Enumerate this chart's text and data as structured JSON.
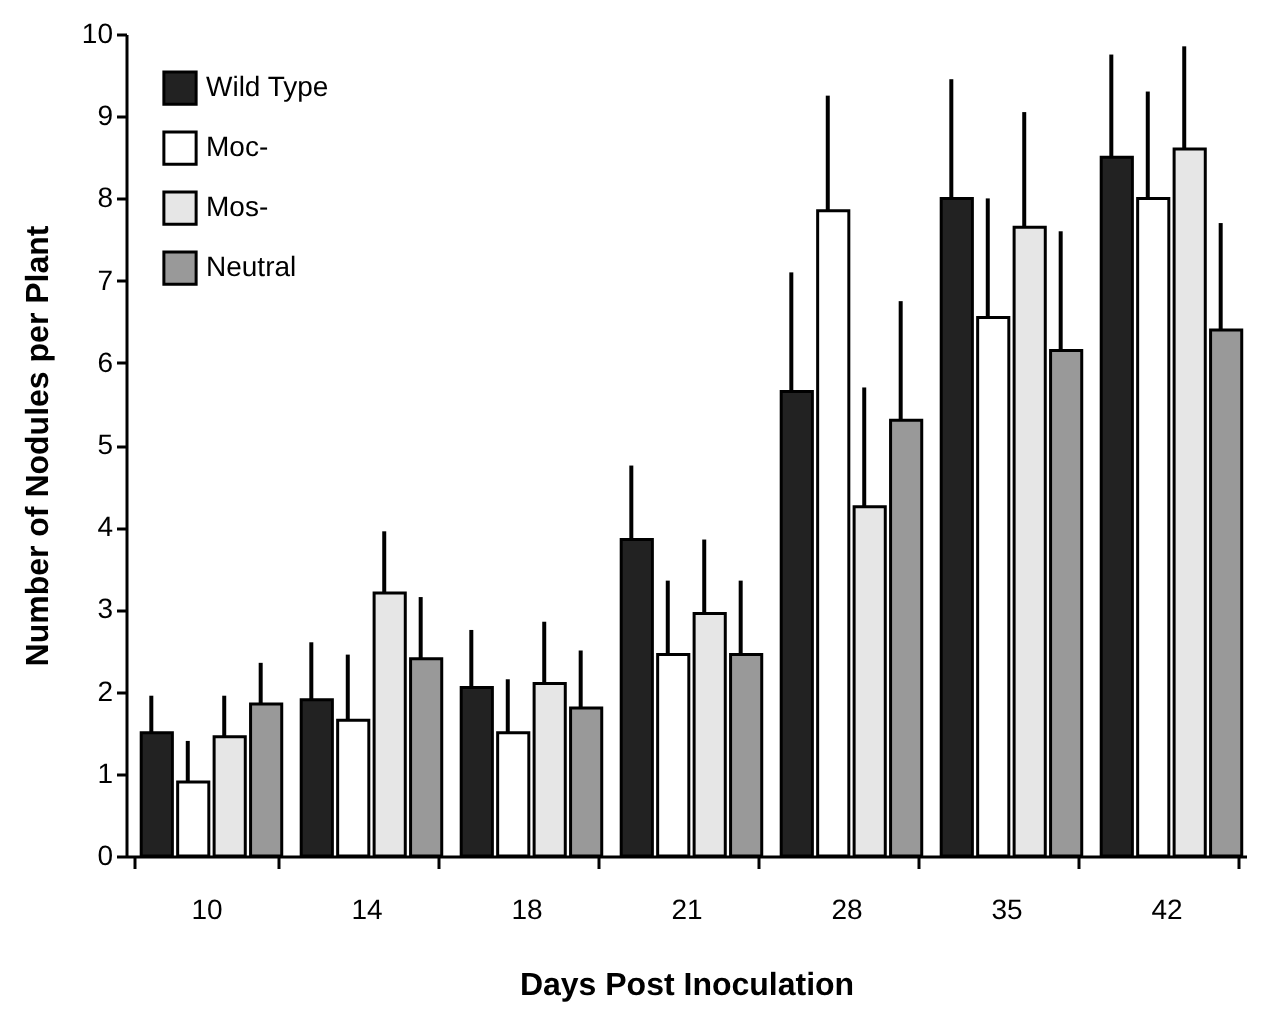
{
  "chart_data": {
    "type": "bar",
    "xlabel": "Days Post Inoculation",
    "ylabel": "Number of Nodules per Plant",
    "categories": [
      "10",
      "14",
      "18",
      "21",
      "28",
      "35",
      "42"
    ],
    "ylim": [
      0,
      10
    ],
    "yticks": [
      0,
      1,
      2,
      3,
      4,
      5,
      6,
      7,
      8,
      9,
      10
    ],
    "legend": "top left",
    "grid": false,
    "series": [
      {
        "name": "Wild Type",
        "color": "#222222",
        "values": [
          1.5,
          1.9,
          2.05,
          3.85,
          5.65,
          8.0,
          8.5
        ],
        "errors": [
          [
            1.5,
            1.95
          ],
          [
            1.9,
            2.6
          ],
          [
            2.05,
            2.75
          ],
          [
            3.85,
            4.75
          ],
          [
            5.65,
            7.1
          ],
          [
            8.0,
            9.45
          ],
          [
            8.5,
            9.75
          ]
        ]
      },
      {
        "name": "Moc-",
        "color": "#ffffff",
        "values": [
          0.9,
          1.65,
          1.5,
          2.45,
          7.85,
          6.55,
          8.0
        ],
        "errors": [
          [
            0.9,
            1.4
          ],
          [
            1.65,
            2.45
          ],
          [
            1.5,
            2.15
          ],
          [
            2.45,
            3.35
          ],
          [
            7.85,
            9.25
          ],
          [
            6.55,
            8.0
          ],
          [
            8.0,
            9.3
          ]
        ]
      },
      {
        "name": "Mos-",
        "color": "#e6e6e6",
        "values": [
          1.45,
          3.2,
          2.1,
          2.95,
          4.25,
          7.65,
          8.6
        ],
        "errors": [
          [
            1.45,
            1.95
          ],
          [
            3.2,
            3.95
          ],
          [
            2.1,
            2.85
          ],
          [
            2.95,
            3.85
          ],
          [
            4.25,
            5.7
          ],
          [
            7.65,
            9.05
          ],
          [
            8.6,
            9.85
          ]
        ]
      },
      {
        "name": "Neutral",
        "color": "#999999",
        "values": [
          1.85,
          2.4,
          1.8,
          2.45,
          5.3,
          6.15,
          6.4
        ],
        "errors": [
          [
            1.85,
            2.35
          ],
          [
            2.4,
            3.15
          ],
          [
            1.8,
            2.5
          ],
          [
            2.45,
            3.35
          ],
          [
            5.3,
            6.75
          ],
          [
            6.15,
            7.6
          ],
          [
            6.4,
            7.7
          ]
        ]
      }
    ]
  }
}
